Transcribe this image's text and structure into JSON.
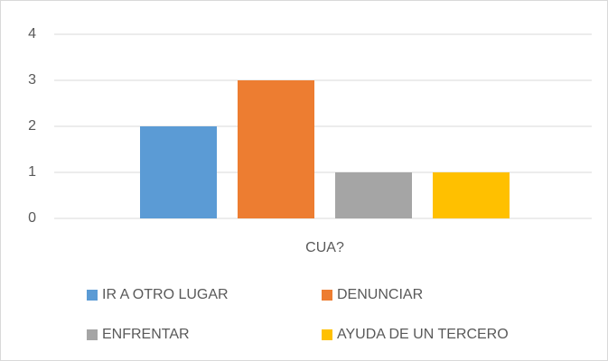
{
  "chart_data": {
    "type": "bar",
    "categories": [
      "CUA?"
    ],
    "series": [
      {
        "name": "IR A OTRO LUGAR",
        "color": "#5b9bd5",
        "values": [
          2
        ]
      },
      {
        "name": "DENUNCIAR",
        "color": "#ed7d31",
        "values": [
          3
        ]
      },
      {
        "name": "ENFRENTAR",
        "color": "#a5a5a5",
        "values": [
          1
        ]
      },
      {
        "name": "AYUDA DE UN TERCERO",
        "color": "#ffc000",
        "values": [
          1
        ]
      }
    ],
    "ylim": [
      0,
      4
    ],
    "yticks": [
      0,
      1,
      2,
      3,
      4
    ],
    "grid": true,
    "legend": "bottom"
  }
}
